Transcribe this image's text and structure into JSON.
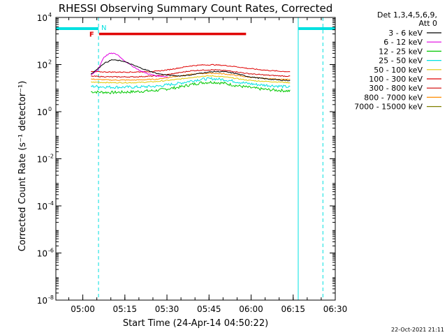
{
  "chart_data": {
    "type": "line",
    "title": "RHESSI Observing Summary Count Rates, Corrected",
    "xlabel": "Start Time (24-Apr-14 04:50:22)",
    "ylabel": "Corrected Count Rate (s⁻¹ detector⁻¹)",
    "y_scale": "log",
    "ylim": [
      1e-08,
      10000
    ],
    "y_ticks": [
      {
        "v": 10000.0,
        "mant": "10",
        "exp": "4"
      },
      {
        "v": 100.0,
        "mant": "10",
        "exp": "2"
      },
      {
        "v": 1.0,
        "mant": "10",
        "exp": "0"
      },
      {
        "v": 0.01,
        "mant": "10",
        "exp": "-2"
      },
      {
        "v": 0.0001,
        "mant": "10",
        "exp": "-4"
      },
      {
        "v": 1e-06,
        "mant": "10",
        "exp": "-6"
      },
      {
        "v": 1e-08,
        "mant": "10",
        "exp": "-8"
      }
    ],
    "x_unit": "minutes after 04:50:22",
    "xlim": [
      0,
      99.6
    ],
    "x_ticks": [
      {
        "t": 9.6,
        "label": "05:00"
      },
      {
        "t": 24.6,
        "label": "05:15"
      },
      {
        "t": 39.6,
        "label": "05:30"
      },
      {
        "t": 54.6,
        "label": "05:45"
      },
      {
        "t": 69.6,
        "label": "06:00"
      },
      {
        "t": 84.6,
        "label": "06:15"
      },
      {
        "t": 99.6,
        "label": "06:30"
      }
    ],
    "legend": {
      "header": [
        "Det 1,3,4,5,6,9,",
        "Att 0"
      ],
      "placement": "right"
    },
    "series": [
      {
        "name": "3 - 6 keV",
        "color": "#000000",
        "x": [
          12.5,
          14.5,
          17,
          20,
          24,
          28,
          32,
          36,
          40,
          44,
          48,
          52,
          56,
          60,
          64,
          68,
          72,
          76,
          80,
          83.5
        ],
        "y": [
          40,
          60,
          110,
          160,
          140,
          90,
          60,
          42,
          35,
          33,
          36,
          44,
          50,
          50,
          42,
          32,
          27,
          24,
          22,
          21
        ]
      },
      {
        "name": "6 - 12 keV",
        "color": "#e000e0",
        "x": [
          12.5,
          15,
          17,
          19,
          20.5,
          22,
          24,
          27,
          30,
          33,
          36,
          40
        ],
        "y": [
          35,
          60,
          200,
          290,
          300,
          260,
          160,
          90,
          55,
          40,
          33,
          30
        ]
      },
      {
        "name": "12 - 25 keV",
        "color": "#00c800",
        "x": [
          12.5,
          20,
          28,
          36,
          44,
          48,
          52,
          56,
          60,
          64,
          68,
          72,
          76,
          80,
          83.5
        ],
        "y": [
          7,
          6.5,
          7,
          8,
          11,
          14,
          17,
          18,
          16,
          13,
          11,
          9.5,
          8.5,
          8,
          7.5
        ]
      },
      {
        "name": "25 - 50 keV",
        "color": "#00e0e0",
        "x": [
          12.5,
          20,
          28,
          36,
          44,
          48,
          52,
          56,
          60,
          64,
          68,
          72,
          76,
          80,
          83.5
        ],
        "y": [
          12,
          11,
          11,
          12,
          16,
          20,
          24,
          25,
          23,
          19,
          16,
          14,
          13,
          12,
          11
        ]
      },
      {
        "name": "50 - 100 keV",
        "color": "#e0c800",
        "x": [
          12.5,
          20,
          28,
          36,
          44,
          48,
          52,
          56,
          60,
          64,
          68,
          72,
          76,
          80,
          83.5
        ],
        "y": [
          18,
          17,
          17,
          19,
          24,
          28,
          32,
          33,
          30,
          26,
          22,
          20,
          19,
          18,
          17
        ]
      },
      {
        "name": "100 - 300 keV",
        "color": "#e00000",
        "x": [
          12.5,
          20,
          28,
          36,
          40,
          44,
          48,
          52,
          56,
          60,
          64,
          68,
          72,
          76,
          80,
          83.5
        ],
        "y": [
          50,
          48,
          48,
          52,
          60,
          72,
          88,
          96,
          98,
          92,
          82,
          70,
          62,
          56,
          52,
          50
        ]
      },
      {
        "name": "300 - 800 keV",
        "color": "#d00000",
        "x": [
          12.5,
          20,
          28,
          36,
          40,
          44,
          48,
          52,
          56,
          60,
          64,
          68,
          72,
          76,
          80,
          83.5
        ],
        "y": [
          32,
          30,
          30,
          33,
          38,
          45,
          54,
          58,
          60,
          56,
          50,
          42,
          38,
          35,
          33,
          32
        ]
      },
      {
        "name": "800 - 7000 keV",
        "color": "#ff8c00",
        "x": [
          12.5,
          20,
          28,
          36,
          40,
          44,
          48,
          52,
          56,
          60,
          64,
          68,
          72,
          76,
          80,
          83.5
        ],
        "y": [
          24,
          22,
          22,
          24,
          28,
          33,
          38,
          42,
          43,
          40,
          35,
          30,
          27,
          25,
          24,
          23
        ]
      },
      {
        "name": "7000 - 15000 keV",
        "color": "#808000",
        "x": [],
        "y": []
      }
    ],
    "attenuator_bars": [
      {
        "x0": 0,
        "x1": 15.2,
        "color": "#00e0e0"
      },
      {
        "x0": 86.4,
        "x1": 99.6,
        "color": "#00e0e0"
      }
    ],
    "night_markers": [
      {
        "t": 15.2,
        "style": "dashed",
        "color": "#00e0e0",
        "label": "N"
      },
      {
        "t": 86.4,
        "style": "solid",
        "color": "#00e0e0"
      },
      {
        "t": 95.2,
        "style": "dashed",
        "color": "#00e0e0"
      }
    ],
    "flare_flag": {
      "x0": 15.4,
      "x1": 67.8,
      "value": 2000,
      "color": "#e00000",
      "label": "F"
    },
    "footer": "22-Oct-2021 21:11"
  }
}
